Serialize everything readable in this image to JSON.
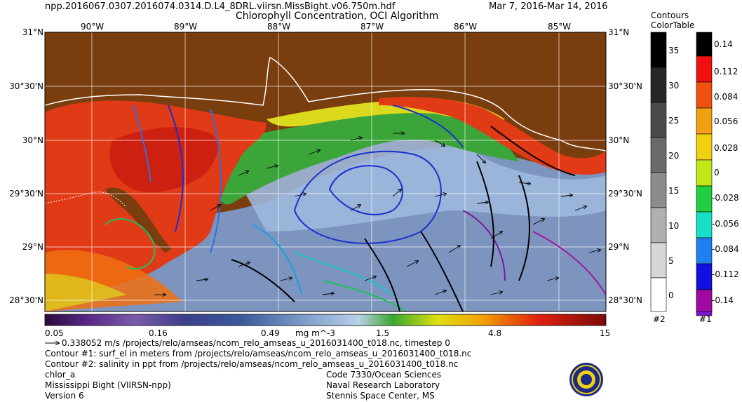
{
  "header": {
    "filename": "npp.2016067.0307.2016074.0314.D.L4_8DRL.viirsn.MissBight.v06.750m.hdf",
    "title": "Chlorophyll Concentration, OCI Algorithm",
    "date_range": "Mar  7, 2016-Mar 14, 2016"
  },
  "map": {
    "lat_labels": [
      "31°N",
      "30°30'N",
      "30°N",
      "29°30'N",
      "29°N",
      "28°30'N"
    ],
    "lon_labels": [
      "90°W",
      "89°W",
      "88°W",
      "87°W",
      "86°W",
      "85°W"
    ],
    "colors": {
      "land": "#7a3d0e",
      "coast": "#ffffff",
      "grid": "#ffffff"
    }
  },
  "colorbar": {
    "ticks": [
      "0.05",
      "0.16",
      "0.49",
      "1.5",
      "4.8",
      "15"
    ],
    "unit": "mg m^-3"
  },
  "legend": {
    "contours_title_1": "Contours",
    "contours_title_2": "ColorTable",
    "salinity_ticks": [
      "35",
      "30",
      "25",
      "20",
      "15",
      "10",
      "5",
      "0"
    ],
    "ssh_ticks": [
      "0.14",
      "0.112",
      "0.084",
      "0.056",
      "0.028",
      "0",
      "-0.028",
      "-0.056",
      "-0.084",
      "-0.112",
      "-0.14"
    ],
    "label_2": "#2",
    "label_1": "#1"
  },
  "footer": {
    "vector_line": "0.338052 m/s /projects/relo/amseas/ncom_relo_amseas_u_2016031400_t018.nc, timestep 0",
    "contour1": "Contour #1: surf_el in meters from /projects/relo/amseas/ncom_relo_amseas_u_2016031400_t018.nc",
    "contour2": "Contour #2: salinity in ppt from /projects/relo/amseas/ncom_relo_amseas_u_2016031400_t018.nc",
    "product": "chlor_a",
    "region": "Mississippi Bight (VIIRSN-npp)",
    "version": "Version 6",
    "org1": "Code 7330/Ocean Sciences",
    "org2": "Naval Research Laboratory",
    "org3": "Stennis Space Center, MS"
  }
}
